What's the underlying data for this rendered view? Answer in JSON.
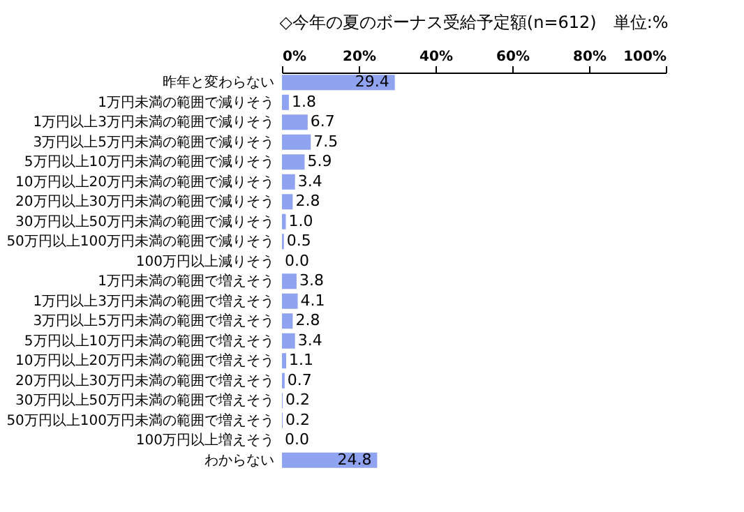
{
  "chart_data": {
    "type": "bar",
    "orientation": "horizontal",
    "title": "◇今年の夏のボーナス受給予定額(n=612)　単位:%",
    "categories": [
      "昨年と変わらない",
      "1万円未満の範囲で減りそう",
      "1万円以上3万円未満の範囲で減りそう",
      "3万円以上5万円未満の範囲で減りそう",
      "5万円以上10万円未満の範囲で減りそう",
      "10万円以上20万円未満の範囲で減りそう",
      "20万円以上30万円未満の範囲で減りそう",
      "30万円以上50万円未満の範囲で減りそう",
      "50万円以上100万円未満の範囲で減りそう",
      "100万円以上減りそう",
      "1万円未満の範囲で増えそう",
      "1万円以上3万円未満の範囲で増えそう",
      "3万円以上5万円未満の範囲で増えそう",
      "5万円以上10万円未満の範囲で増えそう",
      "10万円以上20万円未満の範囲で増えそう",
      "20万円以上30万円未満の範囲で増えそう",
      "30万円以上50万円未満の範囲で増えそう",
      "50万円以上100万円未満の範囲で増えそう",
      "100万円以上増えそう",
      "わからない"
    ],
    "values": [
      29.4,
      1.8,
      6.7,
      7.5,
      5.9,
      3.4,
      2.8,
      1.0,
      0.5,
      0.0,
      3.8,
      4.1,
      2.8,
      3.4,
      1.1,
      0.7,
      0.2,
      0.2,
      0.0,
      24.8
    ],
    "value_labels": [
      "29.4",
      "1.8",
      "6.7",
      "7.5",
      "5.9",
      "3.4",
      "2.8",
      "1.0",
      "0.5",
      "0.0",
      "3.8",
      "4.1",
      "2.8",
      "3.4",
      "1.1",
      "0.7",
      "0.2",
      "0.2",
      "0.0",
      "24.8"
    ],
    "color": "#8fa3f0",
    "xlim": [
      0,
      100
    ],
    "xticks": [
      {
        "value": 0,
        "label": "0%"
      },
      {
        "value": 20,
        "label": "20%"
      },
      {
        "value": 40,
        "label": "40%"
      },
      {
        "value": 60,
        "label": "60%"
      },
      {
        "value": 80,
        "label": "80%"
      },
      {
        "value": 100,
        "label": "100%"
      }
    ],
    "grid": false
  }
}
